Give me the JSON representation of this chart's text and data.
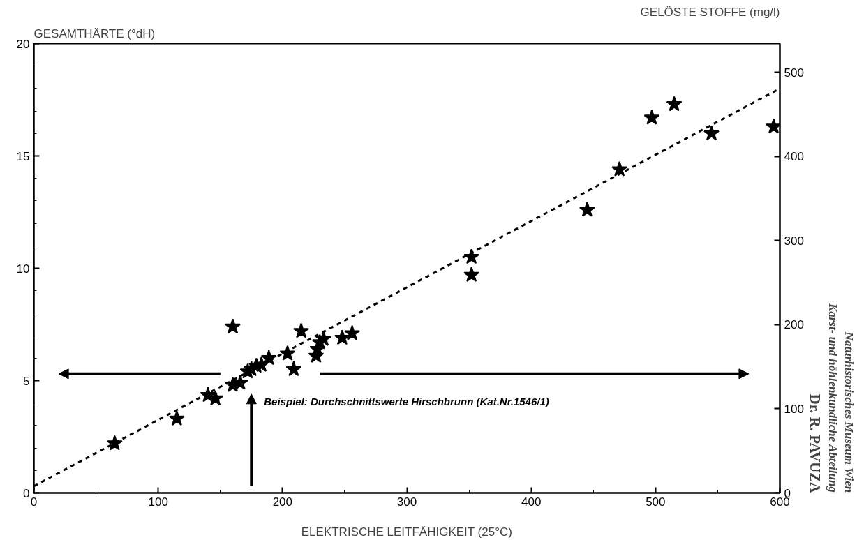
{
  "chart_data": {
    "type": "scatter",
    "xlabel": "ELEKTRISCHE LEITFÄHIGKEIT (25°C)",
    "ylabel": "GESAMTHÄRTE (°dH)",
    "y2label": "GELÖSTE STOFFE (mg/l)",
    "xlim": [
      0,
      600
    ],
    "ylim": [
      0,
      20
    ],
    "y2lim": [
      0,
      534
    ],
    "xticks": [
      0,
      {
        "value": 50,
        "label": null
      },
      100,
      {
        "value": 150,
        "label": null
      },
      200,
      {
        "value": 250,
        "label": null
      },
      300,
      {
        "value": 350,
        "label": null
      },
      400,
      {
        "value": 450,
        "label": null
      },
      500,
      {
        "value": 550,
        "label": null
      },
      600
    ],
    "yticks": [
      0,
      {
        "value": 1,
        "label": null
      },
      {
        "value": 2,
        "label": null
      },
      {
        "value": 3,
        "label": null
      },
      {
        "value": 4,
        "label": null
      },
      5,
      {
        "value": 6,
        "label": null
      },
      {
        "value": 7,
        "label": null
      },
      {
        "value": 8,
        "label": null
      },
      {
        "value": 9,
        "label": null
      },
      10,
      {
        "value": 11,
        "label": null
      },
      {
        "value": 12,
        "label": null
      },
      {
        "value": 13,
        "label": null
      },
      {
        "value": 14,
        "label": null
      },
      15,
      {
        "value": 16,
        "label": null
      },
      {
        "value": 17,
        "label": null
      },
      {
        "value": 18,
        "label": null
      },
      {
        "value": 19,
        "label": null
      },
      20
    ],
    "y2ticks": [
      0,
      100,
      200,
      300,
      400,
      500
    ],
    "marker": "star",
    "series": [
      {
        "color": "#000000",
        "x": [
          65,
          115,
          140,
          146,
          160,
          160,
          166,
          172,
          175,
          179,
          183,
          189,
          204,
          209,
          215,
          227,
          228,
          230,
          233,
          248,
          256,
          352,
          352,
          445,
          471,
          497,
          515,
          545,
          595
        ],
        "values": [
          2.2,
          3.3,
          4.35,
          4.2,
          7.4,
          4.8,
          4.9,
          5.4,
          5.5,
          5.65,
          5.7,
          6.0,
          6.2,
          5.5,
          7.2,
          6.1,
          6.4,
          6.7,
          6.85,
          6.9,
          7.1,
          10.5,
          9.7,
          12.6,
          14.4,
          16.7,
          17.3,
          16.0,
          16.3
        ]
      },
      {
        "type": "line",
        "color": "#000000",
        "line_style": "dashed",
        "marker": "none",
        "x": [
          0,
          600
        ],
        "values": [
          0.3,
          18
        ]
      }
    ],
    "annotations": [
      {
        "text": "Beispiel: Durchschnittswerte Hirschbrunn (Kat.Nr.1546/1)",
        "x": 175,
        "y": 5.3
      },
      "Dr. R. PAVUZA",
      "Karst- und höhlenkundliche Abteilung",
      "Naturhistorisches Museum Wien"
    ]
  }
}
